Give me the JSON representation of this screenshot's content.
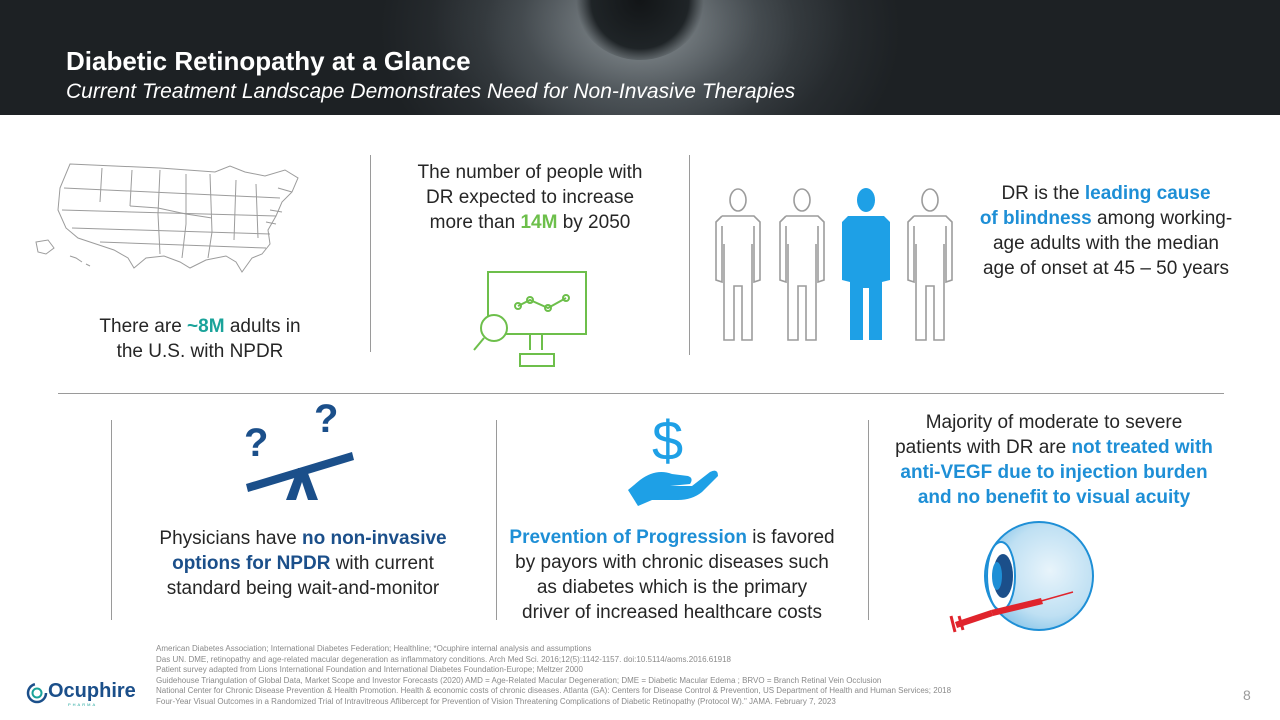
{
  "header": {
    "title": "Diabetic Retinopathy at a Glance",
    "subtitle": "Current Treatment Landscape Demonstrates Need for Non-Invasive Therapies"
  },
  "panels": {
    "npdr": {
      "pre": "There are ",
      "highlight": "~8M",
      "post_line1": " adults in",
      "line2": "the U.S. with NPDR",
      "icon": "us-map-icon",
      "highlight_color": "#1aa39a"
    },
    "growth": {
      "line1": "The number of people with",
      "line2": "DR expected to increase",
      "pre": "more than ",
      "highlight": "14M",
      "post": " by 2050",
      "icon": "monitor-chart-icon",
      "highlight_color": "#6dbf4b"
    },
    "blindness": {
      "pre": "DR is the ",
      "highlight1": "leading cause",
      "highlight2": "of blindness",
      "post1": " among working-",
      "line3": "age adults with the median",
      "line4": "age of onset at 45 – 50 years",
      "icon": "people-icon",
      "highlight_color": "#1e8fd6"
    },
    "physicians": {
      "pre": "Physicians have ",
      "highlight1": "no non-invasive",
      "highlight2": "options for NPDR",
      "post": " with current",
      "line3": "standard being wait-and-monitor",
      "icon": "seesaw-question-icon",
      "highlight_color": "#1b4f8a"
    },
    "prevention": {
      "highlight": "Prevention of Progression",
      "post": " is favored",
      "line2": "by payors with chronic diseases such",
      "line3": "as diabetes which is the primary",
      "line4": "driver of increased healthcare costs",
      "icon": "dollar-hand-icon",
      "highlight_color": "#1e8fd6"
    },
    "antivegf": {
      "line1": "Majority of moderate to severe",
      "pre": "patients with DR are ",
      "highlight1": "not treated with",
      "highlight2": "anti-VEGF due to injection burden",
      "highlight3": "and no benefit to visual acuity",
      "icon": "eye-injection-icon",
      "highlight_color": "#1e8fd6"
    }
  },
  "references": [
    "American Diabetes Association; International Diabetes Federation; Healthline; *Ocuphire internal analysis and assumptions",
    "Das UN. DME, retinopathy and age-related macular degeneration as inflammatory conditions. Arch Med Sci. 2016;12(5):1142-1157.  doi:10.5114/aoms.2016.61918",
    "Patient survey adapted from Lions International Foundation and International Diabetes Foundation-Europe;  Meltzer 2000",
    "Guidehouse Triangulation of Global Data, Market Scope and Investor Forecasts (2020) AMD = Age-Related Macular Degeneration; DME = Diabetic Macular Edema ; BRVO = Branch Retinal Vein Occlusion",
    "National Center for Chronic Disease Prevention & Health Promotion. Health & economic costs of chronic diseases. Atlanta (GA): Centers for Disease Control & Prevention, US Department of Health and Human Services; 2018",
    "Four-Year Visual Outcomes in a Randomized Trial of Intravitreous Aflibercept for Prevention of Vision Threatening Complications of Diabetic Retinopathy (Protocol W).\" JAMA. February 7, 2023"
  ],
  "logo": {
    "name": "Ocuphire",
    "tag": "PHARMA"
  },
  "page_number": "8",
  "colors": {
    "teal": "#1aa39a",
    "blue": "#1e8fd6",
    "navy": "#1b4f8a",
    "green": "#6dbf4b"
  }
}
